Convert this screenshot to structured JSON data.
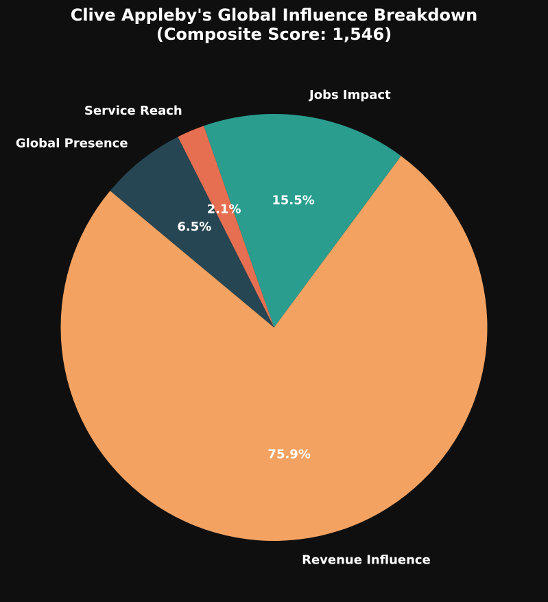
{
  "chart_data": {
    "type": "pie",
    "title_line1": "Clive Appleby's Global Influence Breakdown",
    "title_line2": "(Composite Score: 1,546)",
    "slices": [
      {
        "label": "Revenue Influence",
        "value": 75.9,
        "pct_label": "75.9%",
        "color": "#f4a261"
      },
      {
        "label": "Jobs Impact",
        "value": 15.5,
        "pct_label": "15.5%",
        "color": "#2a9d8f"
      },
      {
        "label": "Service Reach",
        "value": 2.1,
        "pct_label": "2.1%",
        "color": "#e76f51"
      },
      {
        "label": "Global Presence",
        "value": 6.5,
        "pct_label": "6.5%",
        "color": "#264653"
      }
    ]
  }
}
